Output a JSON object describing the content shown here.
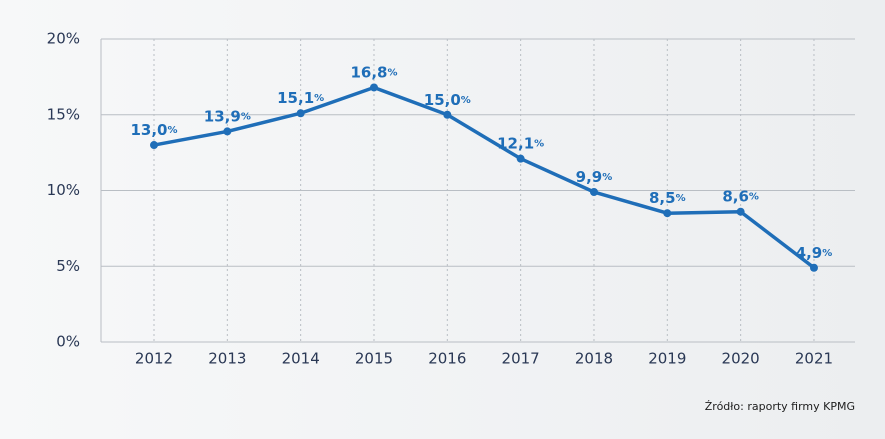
{
  "chart_data": {
    "type": "line",
    "categories": [
      "2012",
      "2013",
      "2014",
      "2015",
      "2016",
      "2017",
      "2018",
      "2019",
      "2020",
      "2021"
    ],
    "values": [
      13.0,
      13.9,
      15.1,
      16.8,
      15.0,
      12.1,
      9.9,
      8.5,
      8.6,
      4.9
    ],
    "value_labels": [
      "13,0%",
      "13,9%",
      "15,1%",
      "16,8%",
      "15,0%",
      "12,1%",
      "9,9%",
      "8,5%",
      "8,6%",
      "4,9%"
    ],
    "color": "#1f6eb8",
    "ylim": [
      0,
      20
    ],
    "yticks": [
      {
        "value": 0,
        "label": "0%"
      },
      {
        "value": 5,
        "label": "5%"
      },
      {
        "value": 10,
        "label": "10%"
      },
      {
        "value": 15,
        "label": "15%"
      },
      {
        "value": 20,
        "label": "20%"
      }
    ],
    "grid": true,
    "source": "Źródło: raporty firmy KPMG"
  }
}
